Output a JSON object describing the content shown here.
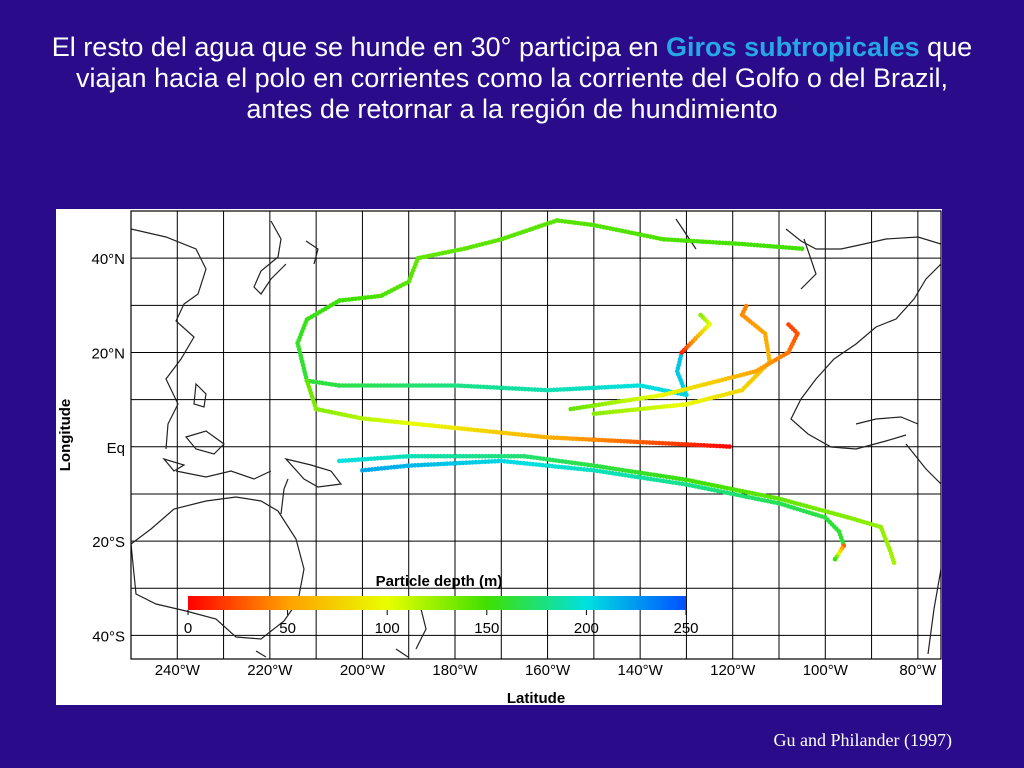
{
  "slide": {
    "title_part1": "El resto del agua que se hunde en 30° participa en ",
    "title_highlight": "Giros subtropicales",
    "title_part2": " que viajan hacia el polo en corrientes como la corriente del Golfo o del Brazil, antes de retornar a la región de hundimiento",
    "highlight_color": "#26a8e6",
    "background_color": "#2a0b8a",
    "citation": "Gu and Philander (1997)"
  },
  "map": {
    "y_axis_title": "Longitude",
    "x_axis_title": "Latitude",
    "y_ticks": [
      "40°N",
      "20°N",
      "Eq",
      "20°S",
      "40°S"
    ],
    "x_ticks": [
      "240°W",
      "220°W",
      "200°W",
      "180°W",
      "160°W",
      "140°W",
      "120°W",
      "100°W",
      "80°W"
    ],
    "colorbar": {
      "title": "Particle depth (m)",
      "ticks": [
        "0",
        "50",
        "100",
        "150",
        "200",
        "250"
      ],
      "range": [
        0,
        250
      ],
      "colors": [
        "#ff0000",
        "#ffa000",
        "#e8ff00",
        "#40e000",
        "#00e0e0",
        "#0050ff"
      ]
    },
    "trajectories": [
      {
        "depth_start": 150,
        "depth_end": 140,
        "points": [
          [
            -105,
            42
          ],
          [
            -118,
            43
          ],
          [
            -135,
            44
          ],
          [
            -150,
            47
          ],
          [
            -158,
            48
          ],
          [
            -170,
            44
          ],
          [
            -178,
            42
          ],
          [
            -188,
            40
          ]
        ]
      },
      {
        "depth_start": 140,
        "depth_end": 210,
        "points": [
          [
            -188,
            40
          ],
          [
            -190,
            35
          ],
          [
            -196,
            32
          ],
          [
            -205,
            31
          ],
          [
            -212,
            27
          ],
          [
            -214,
            22
          ],
          [
            -213,
            18
          ],
          [
            -212,
            14
          ],
          [
            -205,
            13
          ],
          [
            -180,
            13
          ],
          [
            -160,
            12
          ],
          [
            -140,
            13
          ],
          [
            -130,
            11
          ],
          [
            -132,
            16
          ],
          [
            -131,
            20
          ]
        ]
      },
      {
        "depth_start": 10,
        "depth_end": 130,
        "points": [
          [
            -131,
            20
          ],
          [
            -128,
            23
          ],
          [
            -125,
            26
          ],
          [
            -127,
            28
          ]
        ]
      },
      {
        "depth_start": 140,
        "depth_end": 0,
        "points": [
          [
            -212,
            14
          ],
          [
            -210,
            8
          ],
          [
            -200,
            6
          ],
          [
            -180,
            4
          ],
          [
            -160,
            2
          ],
          [
            -140,
            1
          ],
          [
            -120,
            0
          ]
        ]
      },
      {
        "depth_start": 220,
        "depth_end": 160,
        "points": [
          [
            -200,
            -5
          ],
          [
            -190,
            -4
          ],
          [
            -170,
            -3
          ],
          [
            -150,
            -5
          ],
          [
            -130,
            -8
          ],
          [
            -110,
            -12
          ],
          [
            -100,
            -15
          ],
          [
            -97,
            -18
          ],
          [
            -96,
            -21
          ]
        ]
      },
      {
        "depth_start": 30,
        "depth_end": 160,
        "points": [
          [
            -96,
            -21
          ],
          [
            -98,
            -24
          ]
        ]
      },
      {
        "depth_start": 200,
        "depth_end": 120,
        "points": [
          [
            -205,
            -3
          ],
          [
            -190,
            -2
          ],
          [
            -165,
            -2
          ],
          [
            -150,
            -4
          ],
          [
            -130,
            -7
          ],
          [
            -110,
            -11
          ],
          [
            -95,
            -15
          ],
          [
            -88,
            -17
          ],
          [
            -86,
            -22
          ],
          [
            -85,
            -25
          ]
        ]
      },
      {
        "depth_start": 130,
        "depth_end": 40,
        "points": [
          [
            -150,
            7
          ],
          [
            -130,
            9
          ],
          [
            -118,
            12
          ],
          [
            -112,
            18
          ],
          [
            -113,
            24
          ],
          [
            -118,
            28
          ],
          [
            -117,
            30
          ]
        ]
      },
      {
        "depth_start": 140,
        "depth_end": 20,
        "points": [
          [
            -155,
            8
          ],
          [
            -135,
            11
          ],
          [
            -115,
            16
          ],
          [
            -108,
            20
          ],
          [
            -106,
            24
          ],
          [
            -108,
            26
          ]
        ]
      }
    ]
  }
}
